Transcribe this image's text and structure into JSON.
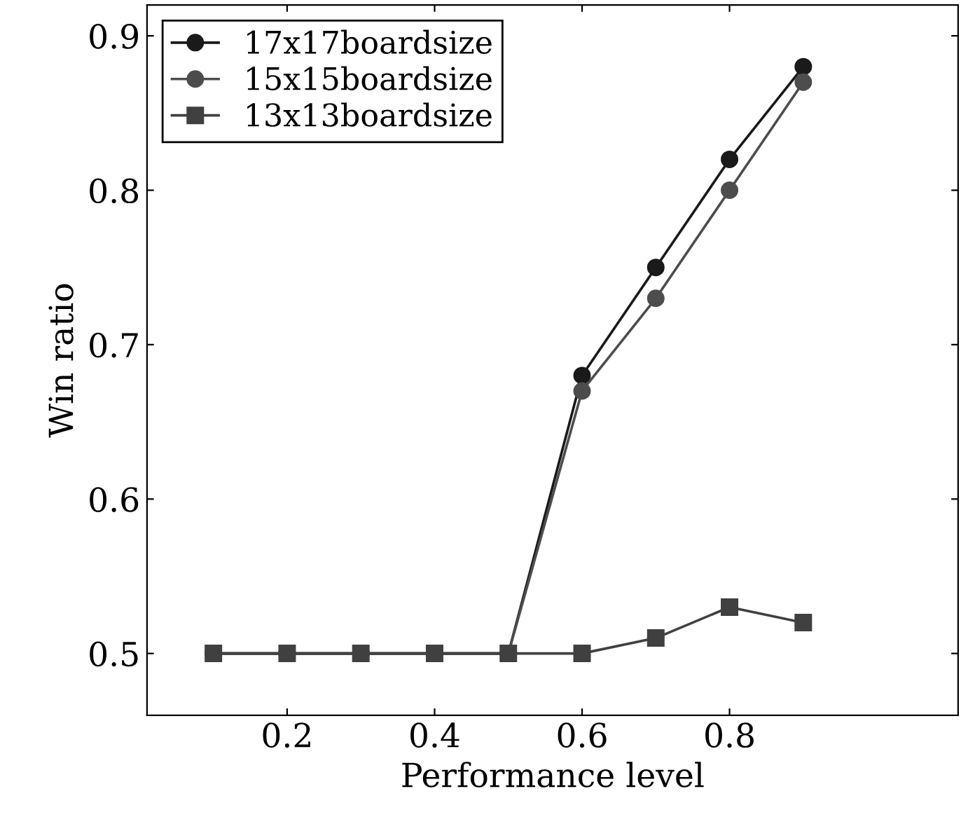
{
  "chart_data": {
    "type": "line",
    "xlabel": "Performance level",
    "ylabel": "Win ratio",
    "x": [
      0.1,
      0.2,
      0.3,
      0.4,
      0.5,
      0.6,
      0.7,
      0.8,
      0.9
    ],
    "series": [
      {
        "name": "17x17boardsize",
        "color": "#1a1a1a",
        "marker": "circle",
        "values": [
          0.5,
          0.5,
          0.5,
          0.5,
          0.5,
          0.68,
          0.75,
          0.82,
          0.88
        ]
      },
      {
        "name": "15x15boardsize",
        "color": "#4d4d4d",
        "marker": "circle",
        "values": [
          0.5,
          0.5,
          0.5,
          0.5,
          0.5,
          0.67,
          0.73,
          0.8,
          0.87
        ]
      },
      {
        "name": "13x13boardsize",
        "color": "#404040",
        "marker": "square",
        "values": [
          0.5,
          0.5,
          0.5,
          0.5,
          0.5,
          0.5,
          0.51,
          0.53,
          0.52
        ]
      }
    ],
    "xlim": [
      0.01,
      1.11
    ],
    "ylim": [
      0.46,
      0.92
    ],
    "xticks": [
      0.2,
      0.4,
      0.6,
      0.8
    ],
    "yticks": [
      0.5,
      0.6,
      0.7,
      0.8,
      0.9
    ],
    "grid": false,
    "legend": "top left",
    "line_style": "solid"
  }
}
